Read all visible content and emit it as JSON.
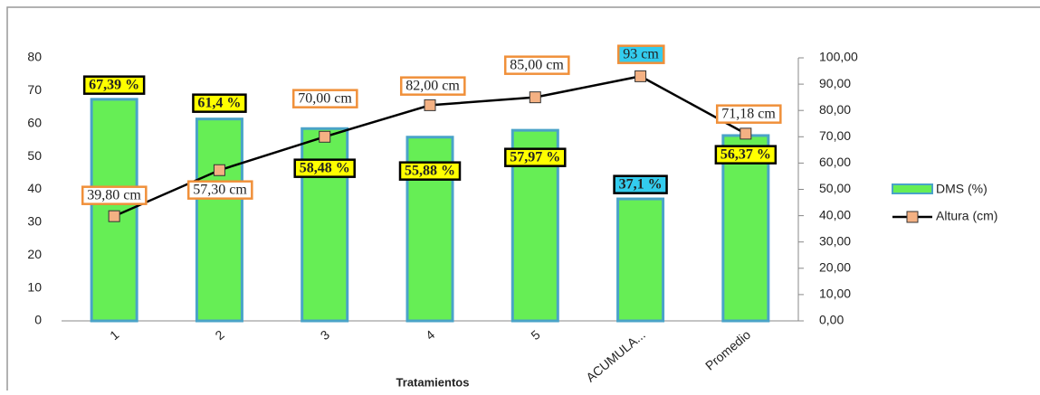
{
  "chart_data": {
    "type": "bar_line",
    "x_label": "Tratamientos",
    "categories": [
      "1",
      "2",
      "3",
      "4",
      "5",
      "ACUMULA...",
      "Promedio"
    ],
    "series": [
      {
        "name": "DMS  (%)",
        "type": "bar",
        "color": "#66ee55",
        "border": "#4aa3c8",
        "values": [
          67.39,
          61.4,
          58.48,
          55.88,
          57.97,
          37.1,
          56.37
        ],
        "value_labels": [
          "67,39 %",
          "61,4 %",
          "58,48 %",
          "55,88 %",
          "57,97 %",
          "37,1 %",
          "56,37 %"
        ],
        "label_colors": [
          "#ffff00",
          "#ffff00",
          "#ffff00",
          "#ffff00",
          "#ffff00",
          "#33ccee",
          "#ffff00"
        ]
      },
      {
        "name": "Altura (cm)",
        "type": "line",
        "axis": "y2",
        "color": "#000000",
        "marker_color": "#f4b183",
        "values": [
          39.8,
          57.3,
          70,
          82,
          85,
          93,
          71.18
        ],
        "value_labels": [
          "39,80 cm",
          "57,30 cm",
          "70,00 cm",
          "82,00 cm",
          "85,00 cm",
          "93 cm",
          "71,18 cm"
        ],
        "label_colors": [
          "#ffffff",
          "#ffffff",
          "#ffffff",
          "#ffffff",
          "#ffffff",
          "#33ccee",
          "#ffffff"
        ]
      }
    ],
    "ylim": [
      0,
      80
    ],
    "yticks": [
      0,
      10,
      20,
      30,
      40,
      50,
      60,
      70,
      80
    ],
    "y2lim": [
      0,
      100
    ],
    "y2ticks": [
      {
        "value": 0,
        "label": "0,00"
      },
      {
        "value": 10,
        "label": "10,00"
      },
      {
        "value": 20,
        "label": "20,00"
      },
      {
        "value": 30,
        "label": "30,00"
      },
      {
        "value": 40,
        "label": "40,00"
      },
      {
        "value": 50,
        "label": "50,00"
      },
      {
        "value": 60,
        "label": "60,00"
      },
      {
        "value": 70,
        "label": "70,00"
      },
      {
        "value": 80,
        "label": "80,00"
      },
      {
        "value": 90,
        "label": "90,00"
      },
      {
        "value": 100,
        "label": "100,00"
      }
    ],
    "legend": "right"
  }
}
